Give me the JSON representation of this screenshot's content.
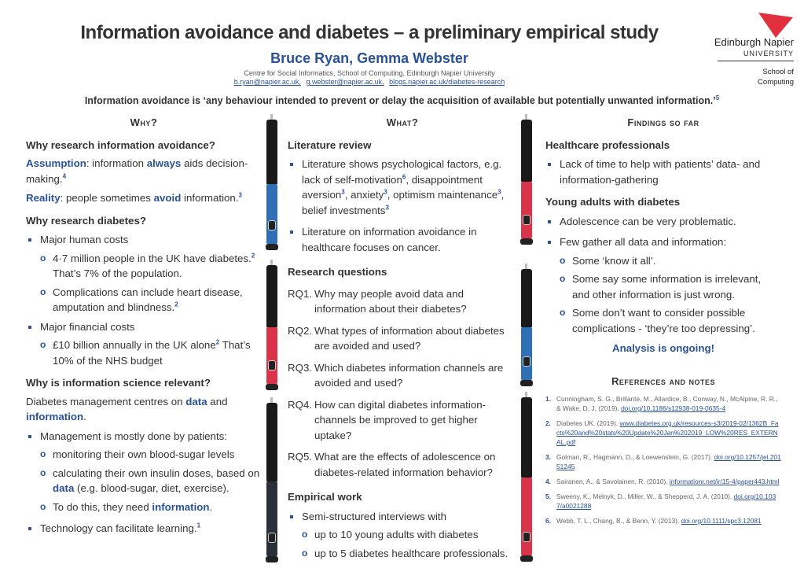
{
  "header": {
    "title": "Information avoidance and diabetes – a preliminary empirical study",
    "authors": "Bruce Ryan, Gemma Webster",
    "affiliation": "Centre for Social Informatics, School of Computing, Edinburgh Napier University",
    "links": [
      "b.ryan@napier.ac.uk,",
      "g.webster@napier.ac.uk,",
      "blogs.napier.ac.uk/diabetes-research"
    ],
    "definition": "Information avoidance is ‘any behaviour intended to prevent or delay the acquisition of available but potentially unwanted information.’",
    "definition_ref": "5"
  },
  "logo": {
    "name": "Edinburgh Napier",
    "sub": "UNIVERSITY",
    "school_line1": "School of",
    "school_line2": "Computing",
    "color": "#e0303e"
  },
  "colors": {
    "accent": "#2a5298",
    "pen_blue": "#2e6fb5",
    "pen_red": "#d9344a"
  },
  "pens": [
    {
      "color": "blue"
    },
    {
      "color": "red"
    },
    {
      "color": "dark"
    },
    {
      "color": "red"
    },
    {
      "color": "blue"
    },
    {
      "color": "red"
    }
  ],
  "columns": [
    {
      "heading": "Why?",
      "blocks": [
        {
          "type": "h",
          "segs": [
            {
              "t": "Why research information avoidance?"
            }
          ]
        },
        {
          "type": "p",
          "segs": [
            {
              "t": "Assumption",
              "s": "b"
            },
            {
              "t": ": information "
            },
            {
              "t": "always",
              "s": "b"
            },
            {
              "t": " aids decision-making."
            },
            {
              "t": "4",
              "s": "sup"
            }
          ]
        },
        {
          "type": "p",
          "gap": 5,
          "segs": [
            {
              "t": "Reality",
              "s": "b"
            },
            {
              "t": ": people sometimes "
            },
            {
              "t": "avoid",
              "s": "b"
            },
            {
              "t": " information."
            },
            {
              "t": "3",
              "s": "sup"
            }
          ]
        },
        {
          "type": "h",
          "segs": [
            {
              "t": "Why research diabetes?"
            }
          ]
        },
        {
          "type": "b1",
          "segs": [
            {
              "t": "Major human costs"
            }
          ]
        },
        {
          "type": "b2",
          "segs": [
            {
              "t": "4·7 million people in the UK have diabetes."
            },
            {
              "t": "2",
              "s": "sup"
            },
            {
              "t": " That’s 7% of the population."
            }
          ]
        },
        {
          "type": "b2",
          "segs": [
            {
              "t": "Complications can include heart disease, amputation and blindness."
            },
            {
              "t": "2",
              "s": "sup"
            }
          ]
        },
        {
          "type": "b1",
          "segs": [
            {
              "t": "Major financial costs"
            }
          ]
        },
        {
          "type": "b2",
          "segs": [
            {
              "t": "£10 billion annually in the UK alone"
            },
            {
              "t": "2",
              "s": "sup"
            },
            {
              "t": " That’s 10% of the NHS budget"
            }
          ]
        },
        {
          "type": "h",
          "segs": [
            {
              "t": "Why is information science relevant?"
            }
          ]
        },
        {
          "type": "p",
          "segs": [
            {
              "t": "Diabetes management centres on "
            },
            {
              "t": "data",
              "s": "b"
            },
            {
              "t": " and "
            },
            {
              "t": "information",
              "s": "b"
            },
            {
              "t": "."
            }
          ]
        },
        {
          "type": "b1",
          "segs": [
            {
              "t": "Management is mostly done by patients:"
            }
          ]
        },
        {
          "type": "b2",
          "segs": [
            {
              "t": "monitoring their own blood-sugar levels"
            }
          ]
        },
        {
          "type": "b2",
          "segs": [
            {
              "t": "calculating their own insulin doses, based on "
            },
            {
              "t": "data",
              "s": "b"
            },
            {
              "t": " (e.g. blood-sugar, diet, exercise)."
            }
          ]
        },
        {
          "type": "b2",
          "segs": [
            {
              "t": "To do this, they need "
            },
            {
              "t": "information",
              "s": "b"
            },
            {
              "t": "."
            }
          ]
        },
        {
          "type": "b1",
          "gap": 8,
          "segs": [
            {
              "t": "Technology can facilitate learning."
            },
            {
              "t": "1",
              "s": "sup"
            }
          ]
        }
      ]
    },
    {
      "heading": "What?",
      "blocks": [
        {
          "type": "h",
          "segs": [
            {
              "t": "Literature review"
            }
          ]
        },
        {
          "type": "b1",
          "segs": [
            {
              "t": "Literature shows psychological factors, e.g. lack of self-motivation"
            },
            {
              "t": "6",
              "s": "sup"
            },
            {
              "t": ", disappointment aversion"
            },
            {
              "t": "3",
              "s": "sup"
            },
            {
              "t": ", anxiety"
            },
            {
              "t": "3",
              "s": "sup"
            },
            {
              "t": ", optimism maintenance"
            },
            {
              "t": "3",
              "s": "sup"
            },
            {
              "t": ", belief investments"
            },
            {
              "t": "3",
              "s": "sup"
            }
          ]
        },
        {
          "type": "b1",
          "gap": 8,
          "segs": [
            {
              "t": "Literature on information avoidance in healthcare focuses on cancer."
            }
          ]
        },
        {
          "type": "h",
          "gap": 12,
          "segs": [
            {
              "t": "Research questions"
            }
          ]
        },
        {
          "type": "rq",
          "num": "RQ1.",
          "segs": [
            {
              "t": "Why may people avoid data and information about their diabetes?"
            }
          ]
        },
        {
          "type": "rq",
          "num": "RQ2.",
          "segs": [
            {
              "t": "What types of information about diabetes are avoided and used?"
            }
          ]
        },
        {
          "type": "rq",
          "num": "RQ3.",
          "segs": [
            {
              "t": "Which diabetes information channels are avoided and used?"
            }
          ]
        },
        {
          "type": "rq",
          "num": "RQ4.",
          "segs": [
            {
              "t": "How can digital diabetes information-channels be improved to get higher uptake?"
            }
          ]
        },
        {
          "type": "rq",
          "num": "RQ5.",
          "segs": [
            {
              "t": "What are the effects of adolescence on diabetes-related information behavior?"
            }
          ]
        },
        {
          "type": "h",
          "gap": 12,
          "segs": [
            {
              "t": "Empirical work"
            }
          ]
        },
        {
          "type": "b1",
          "segs": [
            {
              "t": "Semi-structured interviews with"
            }
          ]
        },
        {
          "type": "b2",
          "segs": [
            {
              "t": "up to 10 young adults with diabetes"
            }
          ]
        },
        {
          "type": "b2",
          "segs": [
            {
              "t": "up to 5 diabetes healthcare professionals."
            }
          ]
        }
      ]
    },
    {
      "heading": "Findings so far",
      "blocks": [
        {
          "type": "h",
          "segs": [
            {
              "t": "Healthcare professionals"
            }
          ]
        },
        {
          "type": "b1",
          "segs": [
            {
              "t": "Lack of time to help with patients’ data- and information-gathering"
            }
          ]
        },
        {
          "type": "h",
          "segs": [
            {
              "t": "Young adults with diabetes"
            }
          ]
        },
        {
          "type": "b1",
          "segs": [
            {
              "t": "Adolescence can be very problematic."
            }
          ]
        },
        {
          "type": "b1",
          "gap": 7,
          "segs": [
            {
              "t": "Few gather all data and information:"
            }
          ]
        },
        {
          "type": "b2",
          "segs": [
            {
              "t": "Some ‘know it all’."
            }
          ]
        },
        {
          "type": "b2",
          "segs": [
            {
              "t": "Some say some information is irrelevant, and other information is just wrong."
            }
          ]
        },
        {
          "type": "b2",
          "segs": [
            {
              "t": "Some don’t want to consider possible complications - ‘they’re too depressing’."
            }
          ]
        },
        {
          "type": "center",
          "segs": [
            {
              "t": "Analysis is ongoing!"
            }
          ]
        }
      ],
      "refs_heading": "References and notes",
      "refs": [
        {
          "n": "1.",
          "text": "Cunningham, S. G., Brillante, M., Allardice, B., Conway, N., McAlpine, R. R., & Wake, D. J. (2019).",
          "link": "doi.org/10.1186/s12938-019-0635-4"
        },
        {
          "n": "2.",
          "text": "Diabetes UK. (2019).",
          "link": "www.diabetes.org.uk/resources-s3/2019-02/1362B_Facts%20and%20stats%20Update%20Jan%202019_LOW%20RES_EXTERNAL.pdf"
        },
        {
          "n": "3.",
          "text": "Golman, R., Hagmann, D., & Loewenstein, G. (2017).",
          "link": "doi.org/10.1257/jel.20151245"
        },
        {
          "n": "4.",
          "text": "Sairanen, A., & Savolainen, R. (2010).",
          "link": "informationr.net/ir/15-4/paper443.html"
        },
        {
          "n": "5.",
          "text": "Sweeny, K., Melnyk, D., Miller, W., & Shepperd, J. A. (2010).",
          "link": "doi.org/10.1037/a0021288"
        },
        {
          "n": "6.",
          "text": "Webb, T. L., Chang, B., & Benn, Y. (2013).",
          "link": "doi.org/10.1111/spc3.12081"
        }
      ]
    }
  ]
}
